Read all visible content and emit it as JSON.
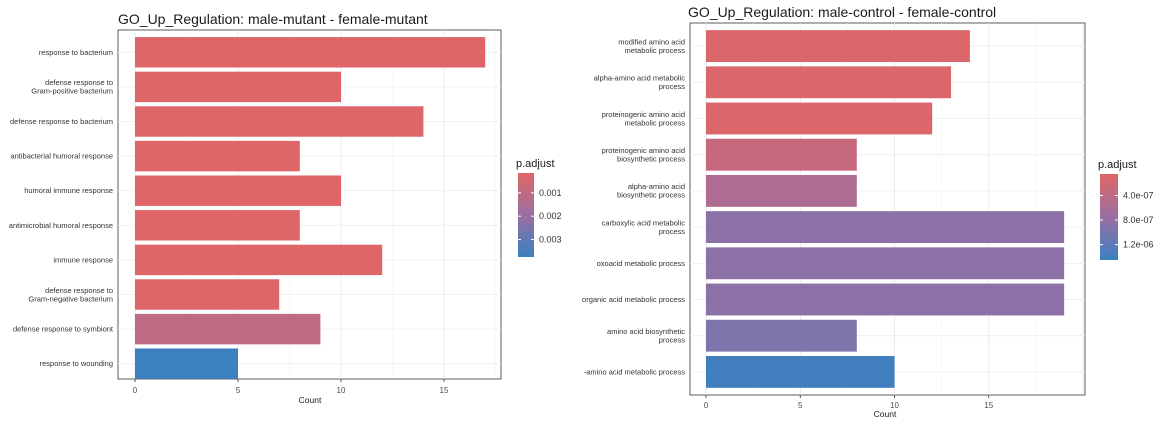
{
  "chart_data": [
    {
      "type": "bar",
      "orientation": "horizontal",
      "title": "GO_Up_Regulation: male-mutant - female-mutant",
      "xlabel": "Count",
      "ylabel": "",
      "xlim": [
        0,
        17.8
      ],
      "xticks": [
        0,
        5,
        10,
        15
      ],
      "grid": true,
      "legend_position": "right",
      "legend": {
        "title": "p.adjust",
        "ticks": [
          0.001,
          0.002,
          0.003
        ],
        "tick_labels": [
          "0.001",
          "0.002",
          "0.003"
        ],
        "range": [
          0.00015,
          0.00375
        ],
        "color_low": "#E06666",
        "color_high": "#3A80C0"
      },
      "categories": [
        [
          "response to bacterium"
        ],
        [
          "defense response to",
          "Gram-positive bacterium"
        ],
        [
          "defense response to bacterium"
        ],
        [
          "antibacterial humoral response"
        ],
        [
          "humoral immune response"
        ],
        [
          "antimicrobial humoral response"
        ],
        [
          "immune response"
        ],
        [
          "defense response to",
          "Gram-negative bacterium"
        ],
        [
          "defense response to symbiont"
        ],
        [
          "response to wounding"
        ]
      ],
      "values": [
        17,
        10,
        14,
        8,
        10,
        8,
        12,
        7,
        9,
        5
      ],
      "p_adjust": [
        0.0002,
        0.0002,
        0.0002,
        0.0002,
        0.0002,
        0.0002,
        0.0002,
        0.0002,
        0.001,
        0.0037
      ]
    },
    {
      "type": "bar",
      "orientation": "horizontal",
      "title": "GO_Up_Regulation: male-control - female-control",
      "xlabel": "Count",
      "ylabel": "",
      "xlim": [
        0,
        20
      ],
      "xticks": [
        0,
        5,
        10,
        15
      ],
      "grid": true,
      "legend_position": "right",
      "legend": {
        "title": "p.adjust",
        "ticks": [
          4e-07,
          8e-07,
          1.2e-06
        ],
        "tick_labels": [
          "4.0e-07",
          "8.0e-07",
          "1.2e-06"
        ],
        "range": [
          5e-08,
          1.45e-06
        ],
        "color_low": "#E06666",
        "color_high": "#3A80C0"
      },
      "categories": [
        [
          "modified amino acid",
          "metabolic process"
        ],
        [
          "alpha-amino acid metabolic",
          "process"
        ],
        [
          "proteinogenic amino acid",
          "metabolic process"
        ],
        [
          "proteinogenic amino acid",
          "biosynthetic process"
        ],
        [
          "alpha-amino acid",
          "biosynthetic process"
        ],
        [
          "carboxylic acid metabolic",
          "process"
        ],
        [
          "oxoacid metabolic process"
        ],
        [
          "organic acid metabolic process"
        ],
        [
          "amino acid biosynthetic",
          "process"
        ],
        [
          "-amino acid metabolic process"
        ]
      ],
      "values": [
        14,
        13,
        12,
        8,
        8,
        19,
        19,
        19,
        8,
        10
      ],
      "p_adjust": [
        1e-07,
        1e-07,
        1e-07,
        3e-07,
        5.5e-07,
        8.5e-07,
        8.5e-07,
        8.5e-07,
        9.5e-07,
        1.4e-06
      ]
    }
  ]
}
